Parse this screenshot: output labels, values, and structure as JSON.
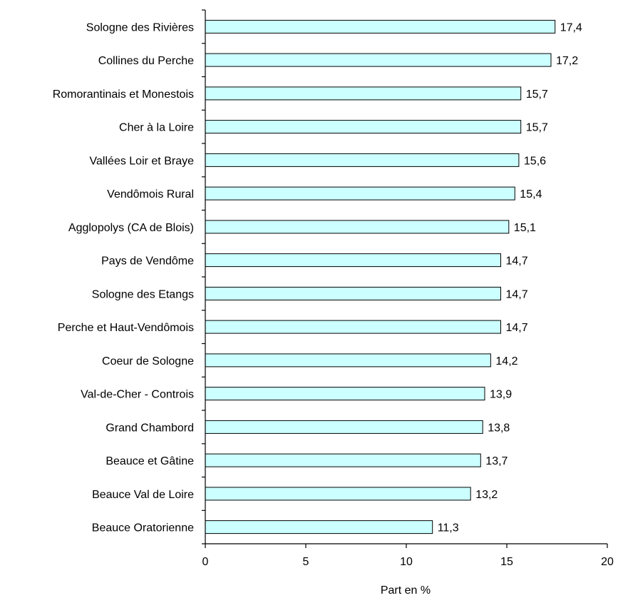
{
  "chart_data": {
    "type": "bar",
    "orientation": "horizontal",
    "categories": [
      "Sologne des Rivières",
      "Collines du Perche",
      "Romorantinais et Monestois",
      "Cher à la Loire",
      "Vallées Loir et Braye",
      "Vendômois Rural",
      "Agglopolys (CA de Blois)",
      "Pays de Vendôme",
      "Sologne des Etangs",
      "Perche et Haut-Vendômois",
      "Coeur de Sologne",
      "Val-de-Cher - Controis",
      "Grand Chambord",
      "Beauce et Gâtine",
      "Beauce Val de Loire",
      "Beauce Oratorienne"
    ],
    "values": [
      17.4,
      17.2,
      15.7,
      15.7,
      15.6,
      15.4,
      15.1,
      14.7,
      14.7,
      14.7,
      14.2,
      13.9,
      13.8,
      13.7,
      13.2,
      11.3
    ],
    "value_labels": [
      "17,4",
      "17,2",
      "15,7",
      "15,7",
      "15,6",
      "15,4",
      "15,1",
      "14,7",
      "14,7",
      "14,7",
      "14,2",
      "13,9",
      "13,8",
      "13,7",
      "13,2",
      "11,3"
    ],
    "xlim": [
      0,
      20
    ],
    "xticks": [
      0,
      5,
      10,
      15,
      20
    ],
    "xtick_labels": [
      "0",
      "5",
      "10",
      "15",
      "20"
    ],
    "xlabel": "Part en %",
    "ylabel": "",
    "title": "",
    "bar_color": "#CCFFFF",
    "grid": false,
    "legend": "none"
  }
}
